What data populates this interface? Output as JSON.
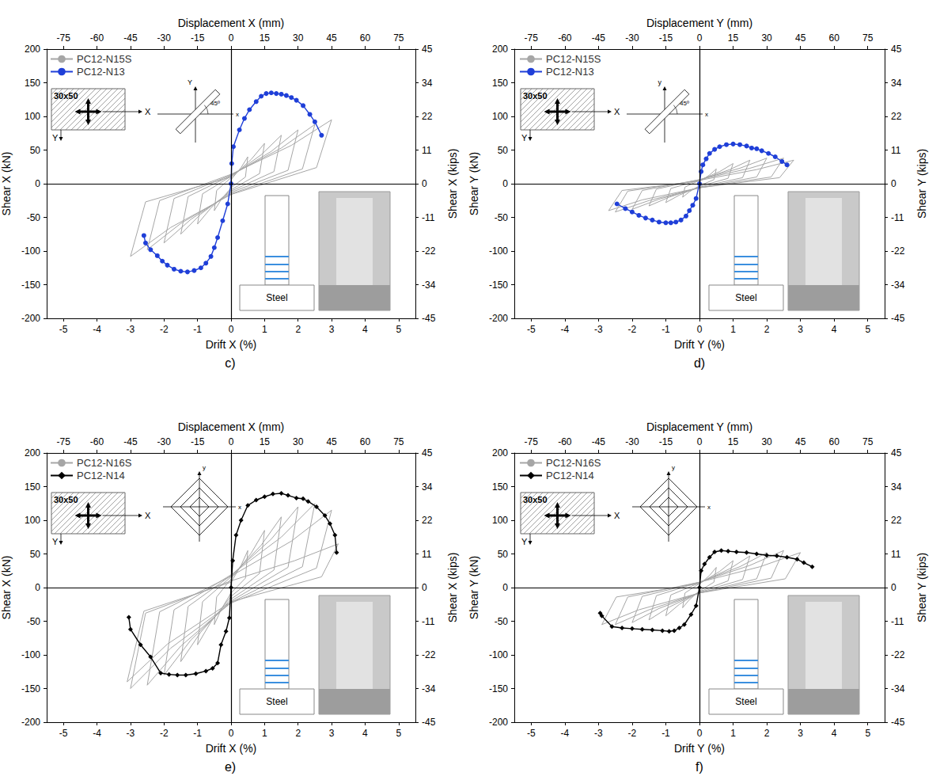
{
  "chart_data": [
    {
      "type": "line",
      "title": "c)",
      "xlabel": "Drift X (%)",
      "x2label": "Displacement X (mm)",
      "ylabel": "Shear X (kN)",
      "y2label": "Shear X (kips)",
      "xlim": [
        -5.5,
        5.5
      ],
      "xticks": [
        -5,
        -4,
        -3,
        -2,
        -1,
        0,
        1,
        2,
        3,
        4,
        5
      ],
      "x2lim": [
        -82.5,
        82.5
      ],
      "x2ticks": [
        -75,
        -60,
        -45,
        -30,
        -15,
        0,
        15,
        30,
        45,
        60,
        75
      ],
      "ylim": [
        -200,
        200
      ],
      "yticks": [
        -200,
        -150,
        -100,
        -50,
        0,
        50,
        100,
        150,
        200
      ],
      "y2lim": [
        -44.96,
        44.96
      ],
      "y2ticks": [
        {
          "value": -44.96,
          "label": "-45"
        },
        {
          "value": -33.72,
          "label": "-34"
        },
        {
          "value": -22.48,
          "label": "-22"
        },
        {
          "value": -11.24,
          "label": "-11"
        },
        0,
        {
          "value": 11.24,
          "label": "11"
        },
        {
          "value": 22.48,
          "label": "22"
        },
        {
          "value": 33.72,
          "label": "34"
        },
        {
          "value": 44.96,
          "label": "45"
        }
      ],
      "grid": false,
      "legend": "upper left",
      "annotations": {
        "section": "30x50",
        "section_axes": [
          "X",
          "Y"
        ],
        "loading_axes": [
          "x",
          "Y"
        ],
        "angle": "45º",
        "base": "Steel"
      },
      "series": [
        {
          "name": "PC12-N15S",
          "color": "#a6a6a6",
          "marker": "none",
          "x": [
            0,
            0,
            0.3,
            0.5,
            0.43,
            0,
            -0.3,
            -0.5,
            -0.43,
            0,
            0.6,
            1,
            0.85,
            0,
            -0.6,
            -1,
            -0.85,
            0,
            0.9,
            1.5,
            1.28,
            0,
            -0.9,
            -1.5,
            -1.28,
            0,
            1.2,
            2,
            1.7,
            0,
            -1.2,
            -2,
            -1.7,
            0,
            1.5,
            2.5,
            2.13,
            0,
            -1.5,
            -2.5,
            -2.13,
            0,
            1.8,
            3,
            2.55,
            0,
            -1.8,
            -3,
            -2.55,
            0
          ],
          "values": [
            0,
            6,
            24,
            40,
            10,
            -6,
            -24,
            -40,
            -10,
            9,
            36,
            60,
            15,
            -9,
            -36,
            -60,
            -15,
            11,
            43,
            72,
            18,
            -11,
            -45,
            -75,
            -19,
            12,
            48,
            80,
            20,
            -13,
            -53,
            -88,
            -22,
            13,
            53,
            88,
            22,
            -15,
            -59,
            -98,
            -25,
            14,
            57,
            95,
            24,
            -16,
            -65,
            -108,
            -27,
            10
          ]
        },
        {
          "name": "PC12-N13",
          "color": "#1f3fd8",
          "marker": "circle",
          "x": [
            -2.6,
            -2.55,
            -2.4,
            -2.2,
            -2.05,
            -1.9,
            -1.7,
            -1.5,
            -1.3,
            -1.1,
            -0.9,
            -0.75,
            -0.6,
            -0.5,
            -0.4,
            -0.25,
            -0.1,
            0,
            0.02,
            0.07,
            0.25,
            0.4,
            0.55,
            0.75,
            0.9,
            1.05,
            1.2,
            1.35,
            1.5,
            1.65,
            1.8,
            1.95,
            2.15,
            2.35,
            2.5,
            2.7
          ],
          "values": [
            -77,
            -88,
            -98,
            -107,
            -115,
            -121,
            -127,
            -130,
            -131,
            -129,
            -125,
            -118,
            -108,
            -95,
            -80,
            -55,
            -30,
            0,
            30,
            55,
            80,
            97,
            110,
            122,
            130,
            134,
            135,
            134,
            133,
            131,
            128,
            124,
            116,
            103,
            92,
            72
          ]
        }
      ]
    },
    {
      "type": "line",
      "title": "d)",
      "xlabel": "Drift Y (%)",
      "x2label": "Displacement Y (mm)",
      "ylabel": "Shear Y (kN)",
      "y2label": "Shear Y (kips)",
      "xlim": [
        -5.5,
        5.5
      ],
      "xticks": [
        -5,
        -4,
        -3,
        -2,
        -1,
        0,
        1,
        2,
        3,
        4,
        5
      ],
      "x2lim": [
        -82.5,
        82.5
      ],
      "x2ticks": [
        -75,
        -60,
        -45,
        -30,
        -15,
        0,
        15,
        30,
        45,
        60,
        75
      ],
      "ylim": [
        -200,
        200
      ],
      "yticks": [
        -200,
        -150,
        -100,
        -50,
        0,
        50,
        100,
        150,
        200
      ],
      "y2lim": [
        -44.96,
        44.96
      ],
      "y2ticks": [
        {
          "value": -44.96,
          "label": "-45"
        },
        {
          "value": -33.72,
          "label": "-34"
        },
        {
          "value": -22.48,
          "label": "-22"
        },
        {
          "value": -11.24,
          "label": "-11"
        },
        0,
        {
          "value": 11.24,
          "label": "11"
        },
        {
          "value": 22.48,
          "label": "22"
        },
        {
          "value": 33.72,
          "label": "34"
        },
        {
          "value": 44.96,
          "label": "45"
        }
      ],
      "grid": false,
      "legend": "upper left",
      "annotations": {
        "section": "30x50",
        "section_axes": [
          "X",
          "Y"
        ],
        "loading_axes": [
          "x",
          "y"
        ],
        "angle": "45º",
        "base": "Steel"
      },
      "series": [
        {
          "name": "PC12-N15S",
          "color": "#a6a6a6",
          "marker": "none",
          "x": [
            0,
            0,
            0.3,
            0.5,
            0.43,
            0,
            -0.3,
            -0.5,
            -0.43,
            0,
            0.6,
            1,
            0.85,
            0,
            -0.6,
            -1,
            -0.85,
            0,
            0.9,
            1.5,
            1.28,
            0,
            -0.9,
            -1.5,
            -1.28,
            0,
            1.2,
            2,
            1.7,
            0,
            -1.2,
            -2,
            -1.7,
            0,
            1.5,
            2.5,
            2.13,
            0,
            -1.5,
            -2.5,
            -2.13,
            0,
            1.7,
            2.8,
            2.38,
            0,
            -1.7,
            -2.7,
            -2.3,
            0
          ],
          "values": [
            0,
            3,
            13,
            22,
            6,
            -3,
            -12,
            -20,
            -5,
            5,
            18,
            30,
            8,
            -4,
            -17,
            -28,
            -7,
            5,
            21,
            35,
            9,
            -5,
            -20,
            -33,
            -8,
            6,
            23,
            38,
            10,
            -6,
            -23,
            -38,
            -10,
            6,
            23,
            38,
            10,
            -6,
            -25,
            -42,
            -11,
            5,
            21,
            35,
            9,
            -6,
            -24,
            -40,
            -10,
            4
          ]
        },
        {
          "name": "PC12-N13",
          "color": "#1f3fd8",
          "marker": "circle",
          "x": [
            -2.45,
            -2.2,
            -2.0,
            -1.8,
            -1.6,
            -1.4,
            -1.2,
            -1.0,
            -0.85,
            -0.7,
            -0.55,
            -0.4,
            -0.3,
            -0.2,
            -0.1,
            0,
            0.05,
            0.1,
            0.2,
            0.3,
            0.45,
            0.6,
            0.8,
            1.0,
            1.2,
            1.4,
            1.55,
            1.7,
            1.85,
            2.05,
            2.25,
            2.45,
            2.6
          ],
          "values": [
            -30,
            -37,
            -42,
            -47,
            -51,
            -54,
            -57,
            -58,
            -58,
            -57,
            -54,
            -48,
            -40,
            -32,
            -22,
            0,
            18,
            28,
            37,
            45,
            51,
            55,
            58,
            59,
            58,
            56,
            53,
            52,
            49,
            45,
            40,
            33,
            28
          ]
        }
      ]
    },
    {
      "type": "line",
      "title": "e)",
      "xlabel": "Drift X (%)",
      "x2label": "Displacement X (mm)",
      "ylabel": "Shear X (kN)",
      "y2label": "Shear X (kips)",
      "xlim": [
        -5.5,
        5.5
      ],
      "xticks": [
        -5,
        -4,
        -3,
        -2,
        -1,
        0,
        1,
        2,
        3,
        4,
        5
      ],
      "x2lim": [
        -82.5,
        82.5
      ],
      "x2ticks": [
        -75,
        -60,
        -45,
        -30,
        -15,
        0,
        15,
        30,
        45,
        60,
        75
      ],
      "ylim": [
        -200,
        200
      ],
      "yticks": [
        -200,
        -150,
        -100,
        -50,
        0,
        50,
        100,
        150,
        200
      ],
      "y2lim": [
        -44.96,
        44.96
      ],
      "y2ticks": [
        {
          "value": -44.96,
          "label": "-45"
        },
        {
          "value": -33.72,
          "label": "-34"
        },
        {
          "value": -22.48,
          "label": "-22"
        },
        {
          "value": -11.24,
          "label": "-11"
        },
        0,
        {
          "value": 11.24,
          "label": "11"
        },
        {
          "value": 22.48,
          "label": "22"
        },
        {
          "value": 33.72,
          "label": "34"
        },
        {
          "value": 44.96,
          "label": "45"
        }
      ],
      "grid": false,
      "legend": "upper left",
      "annotations": {
        "section": "30x50",
        "section_axes": [
          "X",
          "Y"
        ],
        "loading_axes": [
          "x",
          "y"
        ],
        "base": "Steel"
      },
      "series": [
        {
          "name": "PC12-N16S",
          "color": "#a6a6a6",
          "marker": "none",
          "x": [
            0,
            0,
            0.3,
            0.5,
            0.43,
            0,
            -0.3,
            -0.5,
            -0.43,
            0,
            0.6,
            1,
            0.85,
            0,
            -0.6,
            -1,
            -0.85,
            0,
            0.9,
            1.5,
            1.28,
            0,
            -0.9,
            -1.5,
            -1.28,
            0,
            1.2,
            2,
            1.7,
            0,
            -1.2,
            -2,
            -1.7,
            0,
            1.5,
            2.5,
            2.13,
            0,
            -1.5,
            -2.5,
            -2.13,
            0,
            1.8,
            3,
            2.55,
            0,
            -1.8,
            -3,
            -2.55,
            0,
            1.9,
            3.2,
            2.7,
            0,
            -1.9,
            -3.1,
            -2.6,
            0
          ],
          "values": [
            0,
            8,
            33,
            55,
            14,
            -8,
            -33,
            -55,
            -14,
            13,
            51,
            85,
            21,
            -13,
            -51,
            -85,
            -21,
            16,
            63,
            105,
            26,
            -17,
            -66,
            -110,
            -28,
            18,
            72,
            120,
            30,
            -20,
            -78,
            -130,
            -33,
            19,
            75,
            125,
            31,
            -22,
            -87,
            -145,
            -36,
            17,
            69,
            115,
            29,
            -23,
            -90,
            -150,
            -38,
            10,
            40,
            65,
            16,
            -21,
            -84,
            -140,
            -35,
            8
          ]
        },
        {
          "name": "PC12-N14",
          "color": "#000000",
          "marker": "diamond",
          "x": [
            -3.05,
            -3.0,
            -2.7,
            -2.4,
            -2.1,
            -1.85,
            -1.6,
            -1.35,
            -1.05,
            -0.75,
            -0.55,
            -0.4,
            -0.3,
            -0.15,
            -0.05,
            0,
            0.05,
            0.15,
            0.3,
            0.5,
            0.75,
            1.0,
            1.25,
            1.5,
            1.7,
            1.95,
            2.15,
            2.3,
            2.55,
            2.8,
            2.95,
            3.1,
            3.15
          ],
          "values": [
            -44,
            -62,
            -85,
            -103,
            -127,
            -129,
            -130,
            -130,
            -128,
            -124,
            -120,
            -112,
            -85,
            -65,
            -45,
            0,
            40,
            78,
            100,
            122,
            130,
            135,
            139,
            140,
            137,
            133,
            132,
            128,
            120,
            107,
            95,
            78,
            52
          ]
        }
      ]
    },
    {
      "type": "line",
      "title": "f)",
      "xlabel": "Drift Y (%)",
      "x2label": "Displacement Y (mm)",
      "ylabel": "Shear Y (kN)",
      "y2label": "Shear Y (kips)",
      "xlim": [
        -5.5,
        5.5
      ],
      "xticks": [
        -5,
        -4,
        -3,
        -2,
        -1,
        0,
        1,
        2,
        3,
        4,
        5
      ],
      "x2lim": [
        -82.5,
        82.5
      ],
      "x2ticks": [
        -75,
        -60,
        -45,
        -30,
        -15,
        0,
        15,
        30,
        45,
        60,
        75
      ],
      "ylim": [
        -200,
        200
      ],
      "yticks": [
        -200,
        -150,
        -100,
        -50,
        0,
        50,
        100,
        150,
        200
      ],
      "y2lim": [
        -44.96,
        44.96
      ],
      "y2ticks": [
        {
          "value": -44.96,
          "label": "-45"
        },
        {
          "value": -33.72,
          "label": "-34"
        },
        {
          "value": -22.48,
          "label": "-22"
        },
        {
          "value": -11.24,
          "label": "-11"
        },
        0,
        {
          "value": 11.24,
          "label": "11"
        },
        {
          "value": 22.48,
          "label": "22"
        },
        {
          "value": 33.72,
          "label": "34"
        },
        {
          "value": 44.96,
          "label": "45"
        }
      ],
      "grid": false,
      "legend": "upper left",
      "annotations": {
        "section": "30x50",
        "section_axes": [
          "X",
          "Y"
        ],
        "loading_axes": [
          "x",
          "y"
        ],
        "base": "Steel"
      },
      "series": [
        {
          "name": "PC12-N16S",
          "color": "#a6a6a6",
          "marker": "none",
          "x": [
            0,
            0,
            0.3,
            0.5,
            0.43,
            0,
            -0.3,
            -0.5,
            -0.43,
            0,
            0.6,
            1,
            0.85,
            0,
            -0.6,
            -1,
            -0.85,
            0,
            0.9,
            1.5,
            1.28,
            0,
            -0.9,
            -1.5,
            -1.28,
            0,
            1.2,
            2,
            1.7,
            0,
            -1.2,
            -2,
            -1.7,
            0,
            1.5,
            2.5,
            2.13,
            0,
            -1.5,
            -2.5,
            -2.13,
            0,
            1.8,
            3,
            2.55,
            0,
            -1.8,
            -2.9,
            -2.47,
            0
          ],
          "values": [
            0,
            5,
            18,
            30,
            8,
            -5,
            -18,
            -30,
            -8,
            6,
            24,
            40,
            10,
            -6,
            -25,
            -42,
            -11,
            7,
            28,
            47,
            12,
            -7,
            -29,
            -48,
            -12,
            8,
            31,
            52,
            13,
            -8,
            -31,
            -52,
            -13,
            8,
            33,
            55,
            14,
            -8,
            -33,
            -55,
            -14,
            8,
            31,
            52,
            13,
            -8,
            -33,
            -55,
            -14,
            6
          ]
        },
        {
          "name": "PC12-N14",
          "color": "#000000",
          "marker": "diamond",
          "x": [
            -2.95,
            -2.9,
            -2.6,
            -2.3,
            -2.0,
            -1.7,
            -1.4,
            -1.1,
            -0.9,
            -0.75,
            -0.6,
            -0.45,
            -0.25,
            -0.1,
            0,
            0.05,
            0.15,
            0.3,
            0.45,
            0.65,
            0.85,
            1.1,
            1.4,
            1.7,
            2.0,
            2.3,
            2.6,
            2.9,
            3.1,
            3.35
          ],
          "values": [
            -38,
            -42,
            -58,
            -60,
            -61,
            -62,
            -63,
            -64,
            -65,
            -64,
            -60,
            -55,
            -40,
            -27,
            0,
            25,
            35,
            45,
            53,
            55,
            54,
            53,
            52,
            50,
            48,
            47,
            45,
            42,
            37,
            31
          ]
        }
      ]
    }
  ]
}
